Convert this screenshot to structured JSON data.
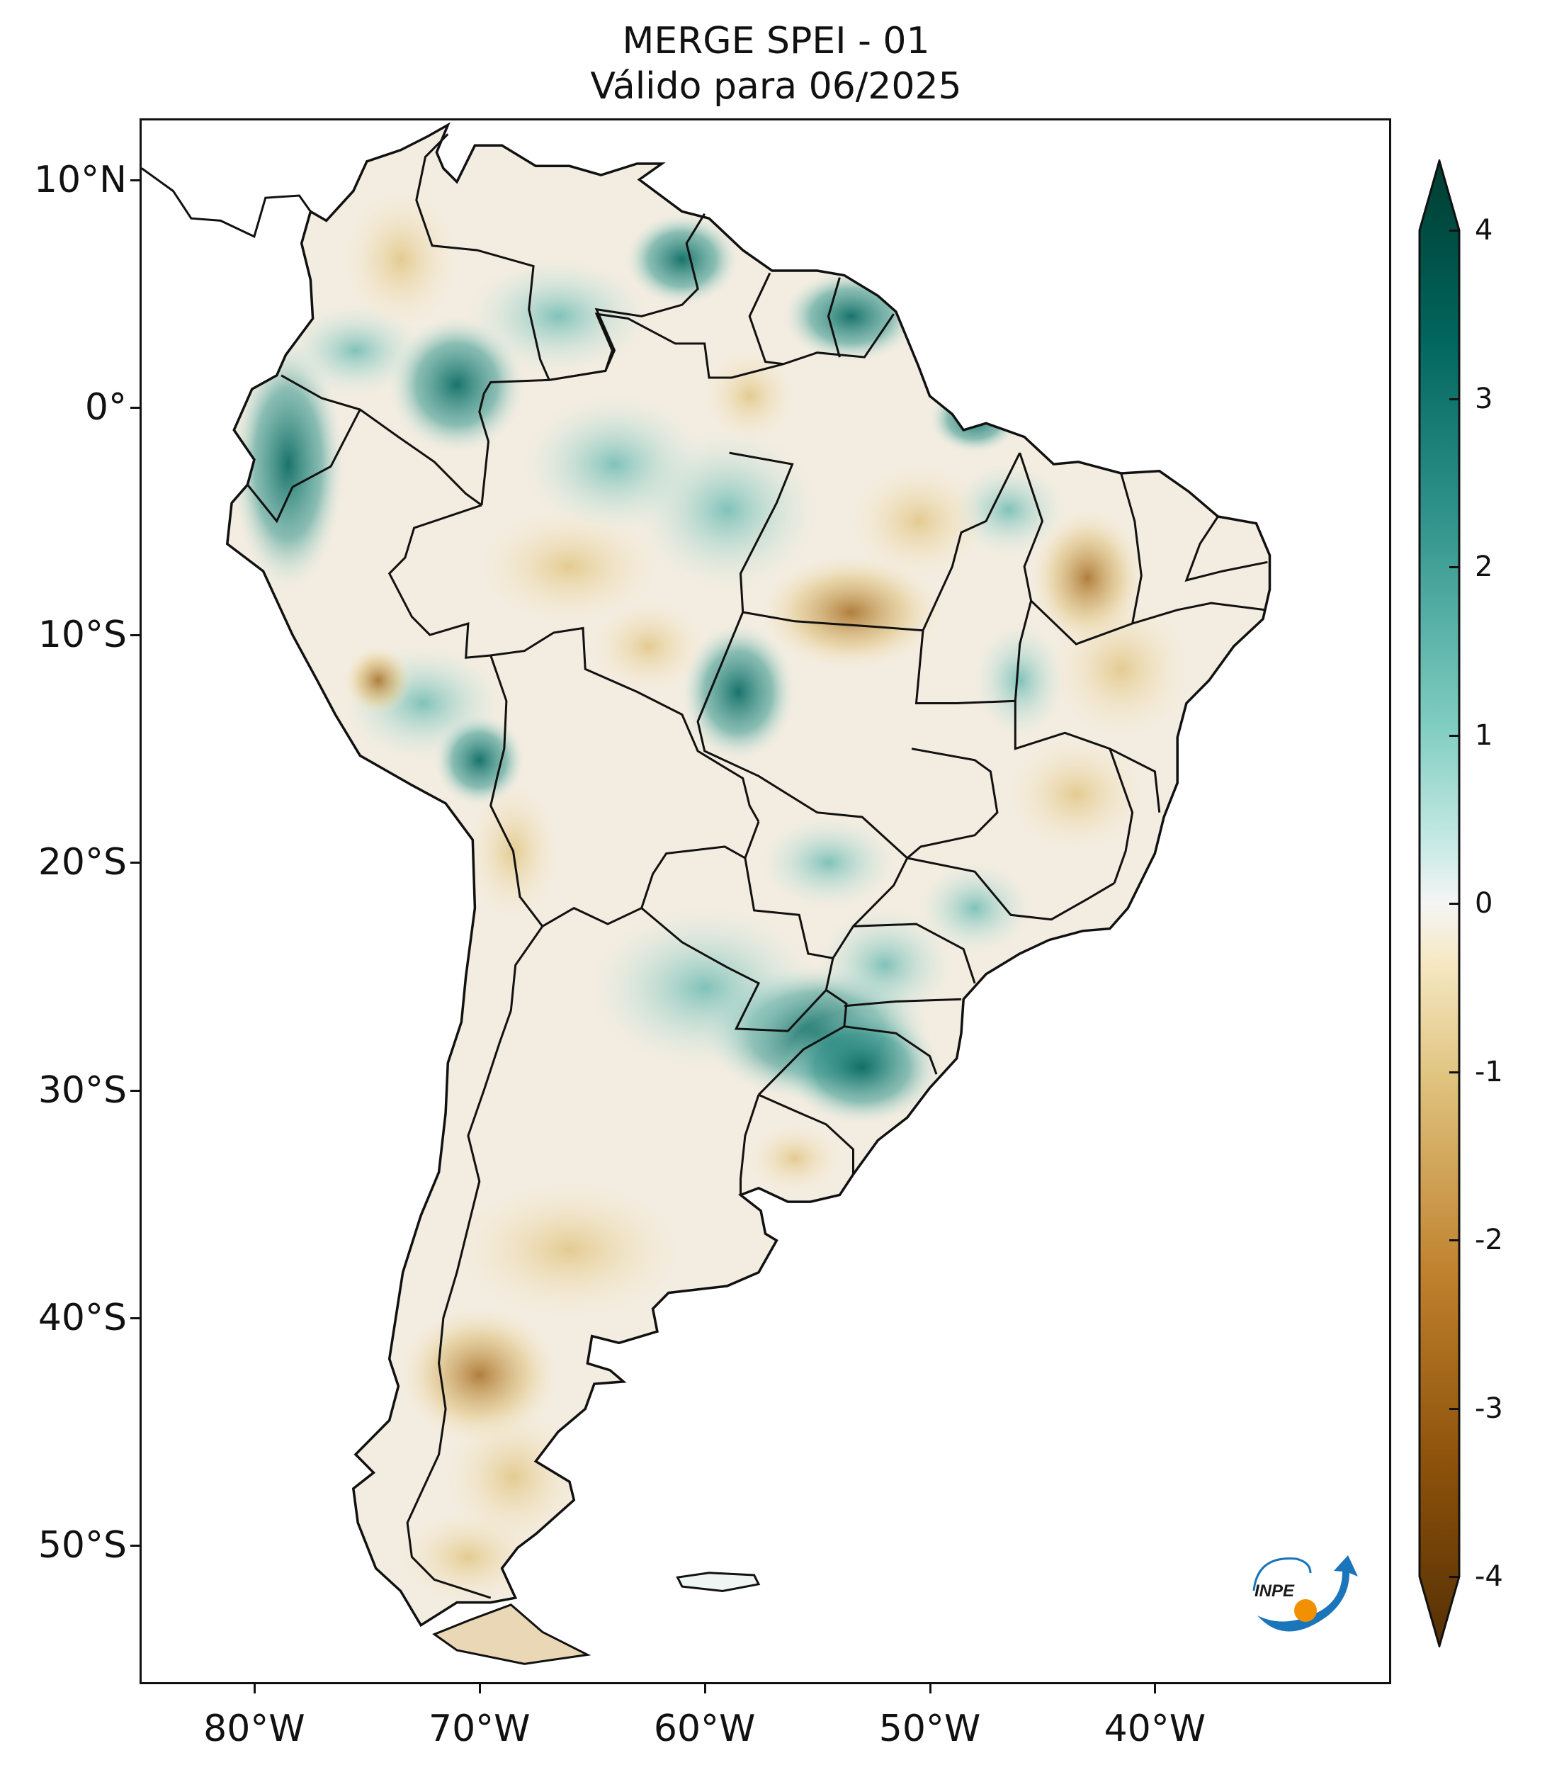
{
  "title": {
    "line1": "MERGE   SPEI - 01",
    "line2": "Válido para 06/2025"
  },
  "map": {
    "lat_labels": [
      "10°N",
      "0°",
      "10°S",
      "20°S",
      "30°S",
      "40°S",
      "50°S"
    ],
    "lon_labels": [
      "80°W",
      "70°W",
      "60°W",
      "50°W",
      "40°W"
    ],
    "lat_values": [
      10,
      0,
      -10,
      -20,
      -30,
      -40,
      -50
    ],
    "lon_values": [
      -80,
      -70,
      -60,
      -50,
      -40
    ],
    "extent": {
      "lon_min": -85,
      "lon_max": -29.6,
      "lat_min": -56,
      "lat_max": 12.6
    }
  },
  "colorbar": {
    "labels": [
      "4",
      "3",
      "2",
      "1",
      "0",
      "-1",
      "-2",
      "-3",
      "-4"
    ],
    "values": [
      4,
      3,
      2,
      1,
      0,
      -1,
      -2,
      -3,
      -4
    ],
    "range": [
      -4,
      4
    ],
    "colors": {
      "dry_max": "#543005",
      "dry": "#bf812d",
      "neutral": "#f5f5f5",
      "wet": "#35978f",
      "wet_max": "#003c30"
    }
  },
  "logo": {
    "text": "INPE"
  }
}
